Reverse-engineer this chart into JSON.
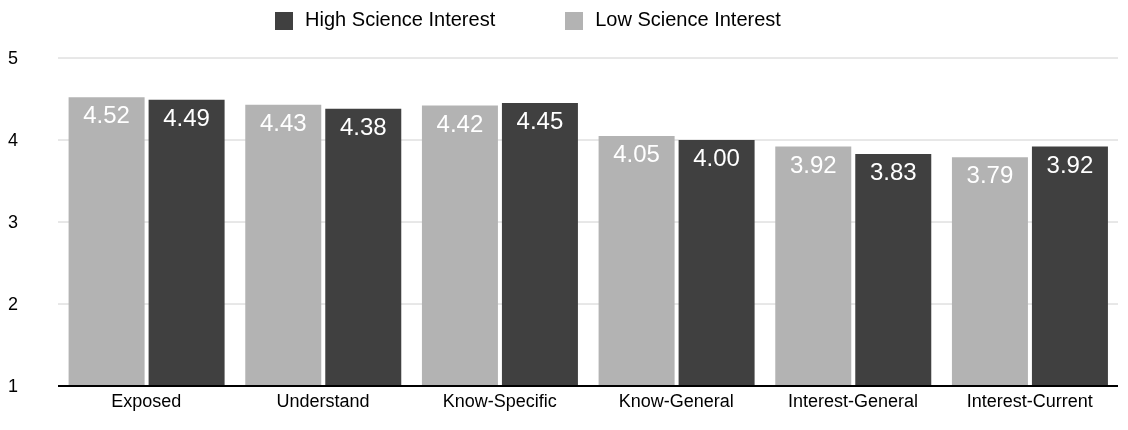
{
  "chart_data": {
    "type": "bar",
    "categories": [
      "Exposed",
      "Understand",
      "Know-Specific",
      "Know-General",
      "Interest-General",
      "Interest-Current"
    ],
    "series": [
      {
        "name": "Low Science Interest",
        "color": "#b3b3b3",
        "values": [
          4.52,
          4.43,
          4.42,
          4.05,
          3.92,
          3.79
        ],
        "value_labels": [
          "4.52",
          "4.43",
          "4.42",
          "4.05",
          "3.92",
          "3.79"
        ]
      },
      {
        "name": "High Science Interest",
        "color": "#404040",
        "values": [
          4.49,
          4.38,
          4.45,
          4.0,
          3.83,
          3.92
        ],
        "value_labels": [
          "4.49",
          "4.38",
          "4.45",
          "4.00",
          "3.83",
          "3.92"
        ]
      }
    ],
    "ylim": [
      1,
      5
    ],
    "yticks": [
      1,
      2,
      3,
      4,
      5
    ],
    "grid": "y",
    "legend": "top"
  }
}
